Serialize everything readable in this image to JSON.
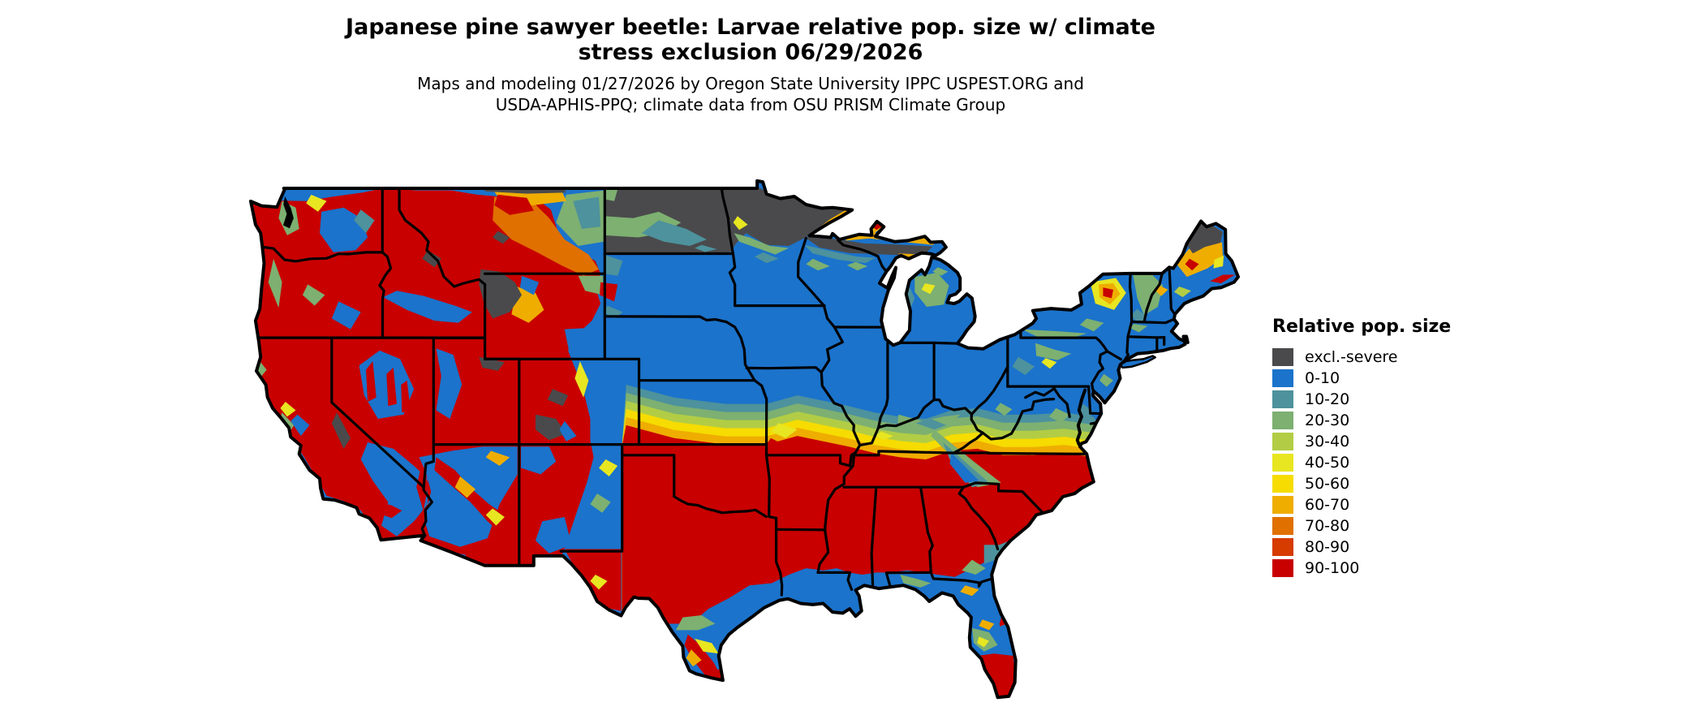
{
  "title": {
    "line1": "Japanese pine sawyer beetle: Larvae relative pop. size w/ climate",
    "line2": "stress exclusion 06/29/2026"
  },
  "subtitle": {
    "line1": "Maps and modeling 01/27/2026 by Oregon State University IPPC USPEST.ORG and",
    "line2": "USDA-APHIS-PPQ; climate data from OSU PRISM Climate Group"
  },
  "legend": {
    "title": "Relative pop. size",
    "items": [
      {
        "label": "excl.-severe",
        "color": "#4a4a4c"
      },
      {
        "label": "0-10",
        "color": "#1b73cb"
      },
      {
        "label": "10-20",
        "color": "#4d929c"
      },
      {
        "label": "20-30",
        "color": "#7db071"
      },
      {
        "label": "30-40",
        "color": "#b2cd45"
      },
      {
        "label": "40-50",
        "color": "#e7e621"
      },
      {
        "label": "50-60",
        "color": "#f6dc00"
      },
      {
        "label": "60-70",
        "color": "#efad00"
      },
      {
        "label": "70-80",
        "color": "#e07000"
      },
      {
        "label": "80-90",
        "color": "#d63b00"
      },
      {
        "label": "90-100",
        "color": "#c80000"
      }
    ]
  },
  "map": {
    "region": "Contiguous United States",
    "water_color": "#ffffff",
    "border_color": "#000000"
  }
}
